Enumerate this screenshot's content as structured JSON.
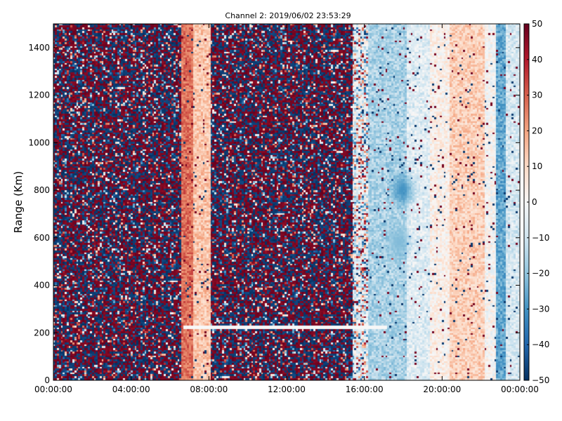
{
  "chart_data": {
    "type": "heatmap",
    "title": "Channel 2: 2019/06/02 23:53:29",
    "xlabel": "",
    "ylabel": "Range (Km)",
    "x_range": [
      "00:00:00",
      "24:00:00"
    ],
    "xlim_hours": [
      0,
      24
    ],
    "ylim": [
      0,
      1500
    ],
    "x_ticks": [
      "00:00:00",
      "04:00:00",
      "08:00:00",
      "12:00:00",
      "16:00:00",
      "20:00:00",
      "00:00:00"
    ],
    "x_tick_hours": [
      0,
      4,
      8,
      12,
      16,
      20,
      24
    ],
    "y_ticks": [
      0,
      200,
      400,
      600,
      800,
      1000,
      1200,
      1400
    ],
    "colorbar": {
      "min": -50,
      "max": 50,
      "ticks": [
        -50,
        -40,
        -30,
        -20,
        -10,
        0,
        10,
        20,
        30,
        40,
        50
      ],
      "colormap": "RdBu_r"
    },
    "regions": [
      {
        "start_h": 0.0,
        "end_h": 6.6,
        "pattern": "noise",
        "level": 0
      },
      {
        "start_h": 6.6,
        "end_h": 7.2,
        "pattern": "smooth",
        "level": 28
      },
      {
        "start_h": 7.2,
        "end_h": 8.1,
        "pattern": "smooth",
        "level": 14
      },
      {
        "start_h": 8.1,
        "end_h": 15.4,
        "pattern": "noise",
        "level": 0
      },
      {
        "start_h": 15.4,
        "end_h": 16.2,
        "pattern": "mixed",
        "level": -5
      },
      {
        "start_h": 16.2,
        "end_h": 18.2,
        "pattern": "smooth",
        "level": -16
      },
      {
        "start_h": 18.2,
        "end_h": 19.4,
        "pattern": "smooth",
        "level": -6
      },
      {
        "start_h": 19.4,
        "end_h": 20.4,
        "pattern": "smooth",
        "level": 3
      },
      {
        "start_h": 20.4,
        "end_h": 22.2,
        "pattern": "smooth",
        "level": 12
      },
      {
        "start_h": 22.2,
        "end_h": 22.8,
        "pattern": "smooth",
        "level": 0
      },
      {
        "start_h": 22.8,
        "end_h": 23.3,
        "pattern": "smooth",
        "level": -26
      },
      {
        "start_h": 23.3,
        "end_h": 24.0,
        "pattern": "smooth",
        "level": -8
      }
    ],
    "features": [
      {
        "kind": "line",
        "range_km": 220,
        "start_h": 6.7,
        "end_h": 17.2,
        "value": 0
      },
      {
        "kind": "blob",
        "center_h": 18.0,
        "center_km": 800,
        "value": -30
      },
      {
        "kind": "blob",
        "center_h": 17.8,
        "center_km": 580,
        "value": -22
      }
    ],
    "grid": false
  }
}
